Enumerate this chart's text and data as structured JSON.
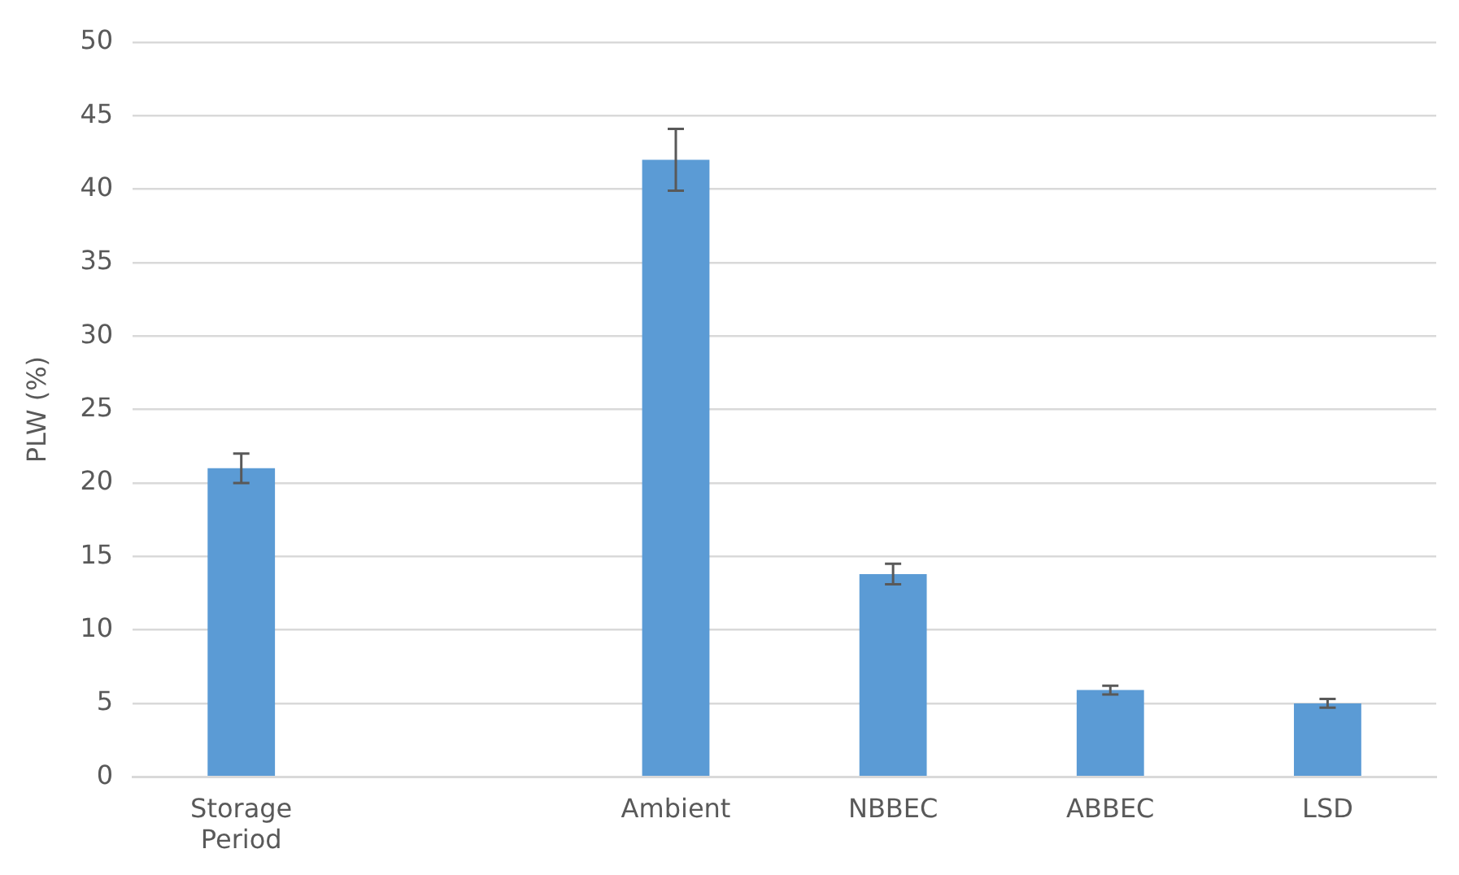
{
  "chart_data": {
    "type": "bar",
    "ylabel": "PLW (%)",
    "categories": [
      "Storage Period",
      null,
      "Ambient",
      "NBBEC",
      "ABBEC",
      "LSD"
    ],
    "values": [
      21,
      null,
      42,
      13.8,
      5.9,
      5.0
    ],
    "errors": [
      1,
      null,
      2.1,
      0.7,
      0.3,
      0.3
    ],
    "color": "#5b9bd5",
    "ylim": [
      0,
      50
    ],
    "yticks": [
      0,
      5,
      10,
      15,
      20,
      25,
      30,
      35,
      40,
      45,
      50
    ],
    "grid": "y",
    "legend": false
  }
}
